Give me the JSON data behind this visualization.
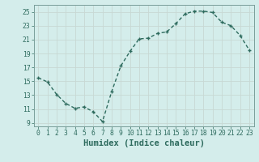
{
  "x": [
    0,
    1,
    2,
    3,
    4,
    5,
    6,
    7,
    8,
    9,
    10,
    11,
    12,
    13,
    14,
    15,
    16,
    17,
    18,
    19,
    20,
    21,
    22,
    23
  ],
  "y": [
    15.5,
    14.9,
    13.1,
    11.8,
    11.1,
    11.3,
    10.6,
    9.2,
    13.5,
    17.2,
    19.3,
    21.1,
    21.2,
    21.9,
    22.1,
    23.3,
    24.7,
    25.1,
    25.1,
    24.9,
    23.5,
    23.0,
    21.6,
    19.5
  ],
  "line_color": "#2e6b5e",
  "marker": "+",
  "marker_size": 3.5,
  "bg_color": "#d4edeb",
  "grid_color": "#c8d8d4",
  "xlabel": "Humidex (Indice chaleur)",
  "xlim": [
    -0.5,
    23.5
  ],
  "ylim": [
    8.5,
    26
  ],
  "yticks": [
    9,
    11,
    13,
    15,
    17,
    19,
    21,
    23,
    25
  ],
  "xticks": [
    0,
    1,
    2,
    3,
    4,
    5,
    6,
    7,
    8,
    9,
    10,
    11,
    12,
    13,
    14,
    15,
    16,
    17,
    18,
    19,
    20,
    21,
    22,
    23
  ],
  "tick_fontsize": 5.8,
  "xlabel_fontsize": 7.5,
  "line_width": 1.0,
  "marker_color": "#2e6b5e",
  "spine_color": "#7a9e9a"
}
